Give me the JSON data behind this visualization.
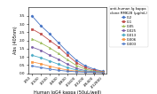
{
  "title": "",
  "xlabel": "Human IgG4 kappa (50uL/well)",
  "ylabel": "Abs (405nm)",
  "legend_title": "anti-human Ig kappa\nclone RMK28 (μg/mL)",
  "x_labels": [
    "1/50",
    "1/100",
    "1/200",
    "1/400",
    "1/800",
    "1/1600",
    "1/3200",
    "1/6400",
    "1/12800"
  ],
  "series": [
    {
      "label": "0.2",
      "color": "#4472C4",
      "marker": "D",
      "values": [
        3.5,
        2.9,
        2.4,
        1.85,
        1.3,
        0.8,
        0.45,
        0.25,
        0.12
      ]
    },
    {
      "label": "0.1",
      "color": "#BE4B48",
      "marker": "s",
      "values": [
        2.7,
        2.4,
        2.0,
        1.6,
        1.1,
        0.65,
        0.35,
        0.18,
        0.1
      ]
    },
    {
      "label": "0.05",
      "color": "#9BBB59",
      "marker": "^",
      "values": [
        2.1,
        1.85,
        1.55,
        1.2,
        0.82,
        0.48,
        0.25,
        0.13,
        0.08
      ]
    },
    {
      "label": "0.025",
      "color": "#7B5EA7",
      "marker": "o",
      "values": [
        1.6,
        1.4,
        1.1,
        0.85,
        0.55,
        0.3,
        0.16,
        0.09,
        0.06
      ]
    },
    {
      "label": "0.013",
      "color": "#4BACC6",
      "marker": "D",
      "values": [
        1.1,
        0.95,
        0.75,
        0.55,
        0.35,
        0.2,
        0.12,
        0.07,
        0.05
      ]
    },
    {
      "label": "0.006",
      "color": "#F79646",
      "marker": "s",
      "values": [
        0.7,
        0.58,
        0.44,
        0.3,
        0.2,
        0.13,
        0.09,
        0.06,
        0.05
      ]
    },
    {
      "label": "0.003",
      "color": "#4472C4",
      "marker": "o",
      "marker_fill": "none",
      "values": [
        0.45,
        0.35,
        0.26,
        0.18,
        0.13,
        0.09,
        0.07,
        0.05,
        0.04
      ]
    }
  ],
  "ylim": [
    0,
    4.0
  ],
  "yticks": [
    0,
    0.5,
    1.0,
    1.5,
    2.0,
    2.5,
    3.0,
    3.5
  ],
  "bg_color": "#FFFFFF"
}
